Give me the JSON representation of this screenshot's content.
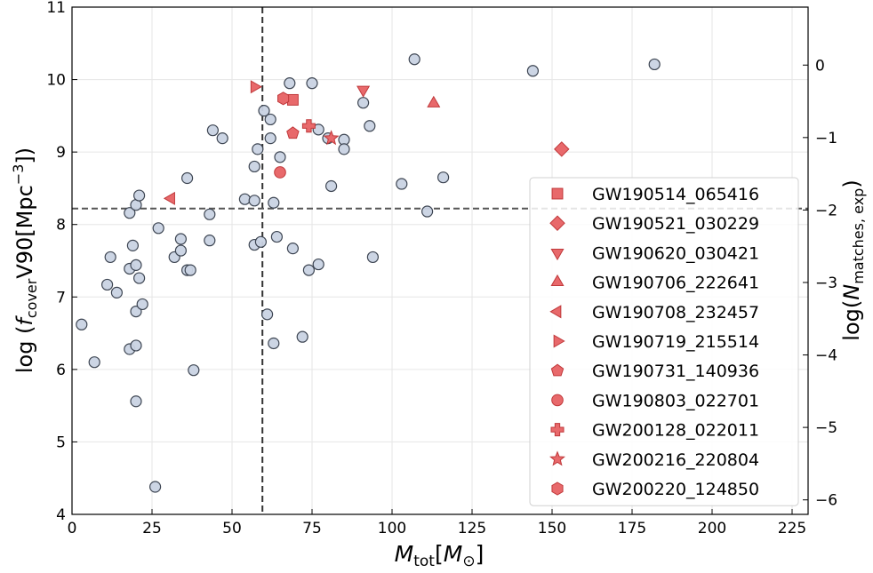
{
  "chart_data": {
    "type": "scatter",
    "xlabel_main": "M",
    "xlabel_sub": "tot",
    "xlabel_bracket_main": "M",
    "xlabel_bracket_sub": "⊙",
    "ylabel_left_prefix": "log (",
    "ylabel_left_f": "f",
    "ylabel_left_fsub": "cover",
    "ylabel_left_rest": "V90[Mpc",
    "ylabel_left_sup": "−3",
    "ylabel_left_close": "])",
    "ylabel_right_prefix": "log(",
    "ylabel_right_N": "N",
    "ylabel_right_sub": "matches, exp",
    "ylabel_right_close": ")",
    "xlim": [
      0,
      230
    ],
    "ylim_left": [
      4,
      11
    ],
    "ylim_right": [
      -6.2,
      0.8
    ],
    "x_ticks": [
      "0",
      "25",
      "50",
      "75",
      "100",
      "125",
      "150",
      "175",
      "200",
      "225"
    ],
    "y_ticks_left": [
      "4",
      "5",
      "6",
      "7",
      "8",
      "9",
      "10",
      "11"
    ],
    "y_ticks_right": [
      "0",
      "−1",
      "−2",
      "−3",
      "−4",
      "−5",
      "−6"
    ],
    "grid": true,
    "vline_x": 59.5,
    "hline_y": 8.22,
    "background_color": "#c9d3e3",
    "highlight_color": "#e8696b",
    "background_points": [
      {
        "x": 3,
        "y": 6.62
      },
      {
        "x": 7,
        "y": 6.1
      },
      {
        "x": 11,
        "y": 7.17
      },
      {
        "x": 12,
        "y": 7.55
      },
      {
        "x": 14,
        "y": 7.06
      },
      {
        "x": 18,
        "y": 7.39
      },
      {
        "x": 18,
        "y": 8.16
      },
      {
        "x": 18,
        "y": 6.28
      },
      {
        "x": 19,
        "y": 7.71
      },
      {
        "x": 20,
        "y": 8.27
      },
      {
        "x": 20,
        "y": 7.44
      },
      {
        "x": 20,
        "y": 6.8
      },
      {
        "x": 20,
        "y": 6.33
      },
      {
        "x": 20,
        "y": 5.56
      },
      {
        "x": 21,
        "y": 8.4
      },
      {
        "x": 21,
        "y": 7.26
      },
      {
        "x": 22,
        "y": 6.9
      },
      {
        "x": 26,
        "y": 4.38
      },
      {
        "x": 27,
        "y": 7.95
      },
      {
        "x": 32,
        "y": 7.55
      },
      {
        "x": 34,
        "y": 7.8
      },
      {
        "x": 34,
        "y": 7.64
      },
      {
        "x": 36,
        "y": 8.64
      },
      {
        "x": 36,
        "y": 7.37
      },
      {
        "x": 37,
        "y": 7.37
      },
      {
        "x": 38,
        "y": 5.99
      },
      {
        "x": 43,
        "y": 8.14
      },
      {
        "x": 43,
        "y": 7.78
      },
      {
        "x": 44,
        "y": 9.3
      },
      {
        "x": 47,
        "y": 9.19
      },
      {
        "x": 54,
        "y": 8.35
      },
      {
        "x": 57,
        "y": 8.33
      },
      {
        "x": 57,
        "y": 8.8
      },
      {
        "x": 57,
        "y": 7.72
      },
      {
        "x": 58,
        "y": 9.04
      },
      {
        "x": 59,
        "y": 7.76
      },
      {
        "x": 60,
        "y": 9.57
      },
      {
        "x": 61,
        "y": 6.76
      },
      {
        "x": 62,
        "y": 9.45
      },
      {
        "x": 62,
        "y": 9.19
      },
      {
        "x": 63,
        "y": 8.3
      },
      {
        "x": 63,
        "y": 6.36
      },
      {
        "x": 64,
        "y": 7.83
      },
      {
        "x": 65,
        "y": 8.93
      },
      {
        "x": 68,
        "y": 9.95
      },
      {
        "x": 69,
        "y": 7.67
      },
      {
        "x": 72,
        "y": 6.45
      },
      {
        "x": 74,
        "y": 7.37
      },
      {
        "x": 75,
        "y": 9.95
      },
      {
        "x": 77,
        "y": 9.31
      },
      {
        "x": 77,
        "y": 7.45
      },
      {
        "x": 80,
        "y": 9.19
      },
      {
        "x": 81,
        "y": 8.53
      },
      {
        "x": 85,
        "y": 9.17
      },
      {
        "x": 85,
        "y": 9.04
      },
      {
        "x": 91,
        "y": 9.68
      },
      {
        "x": 93,
        "y": 9.36
      },
      {
        "x": 94,
        "y": 7.55
      },
      {
        "x": 103,
        "y": 8.56
      },
      {
        "x": 107,
        "y": 10.28
      },
      {
        "x": 111,
        "y": 8.18
      },
      {
        "x": 116,
        "y": 8.65
      },
      {
        "x": 144,
        "y": 10.12
      },
      {
        "x": 182,
        "y": 10.21
      }
    ],
    "events": [
      {
        "name": "GW190514_065416",
        "marker": "square",
        "x": 69,
        "y": 9.72
      },
      {
        "name": "GW190521_030229",
        "marker": "diamond",
        "x": 153,
        "y": 9.04
      },
      {
        "name": "GW190620_030421",
        "marker": "triangle-down",
        "x": 91,
        "y": 9.86
      },
      {
        "name": "GW190706_222641",
        "marker": "triangle-up",
        "x": 113,
        "y": 9.67
      },
      {
        "name": "GW190708_232457",
        "marker": "triangle-left",
        "x": 31,
        "y": 8.36
      },
      {
        "name": "GW190719_215514",
        "marker": "triangle-right",
        "x": 57,
        "y": 9.9
      },
      {
        "name": "GW190731_140936",
        "marker": "pentagon",
        "x": 69,
        "y": 9.26
      },
      {
        "name": "GW190803_022701",
        "marker": "circle",
        "x": 65,
        "y": 8.72
      },
      {
        "name": "GW200128_022011",
        "marker": "plus",
        "x": 74,
        "y": 9.36
      },
      {
        "name": "GW200216_220804",
        "marker": "star",
        "x": 81,
        "y": 9.19
      },
      {
        "name": "GW200220_124850",
        "marker": "hexagon",
        "x": 66,
        "y": 9.74
      }
    ],
    "legend_position": "center-right"
  }
}
